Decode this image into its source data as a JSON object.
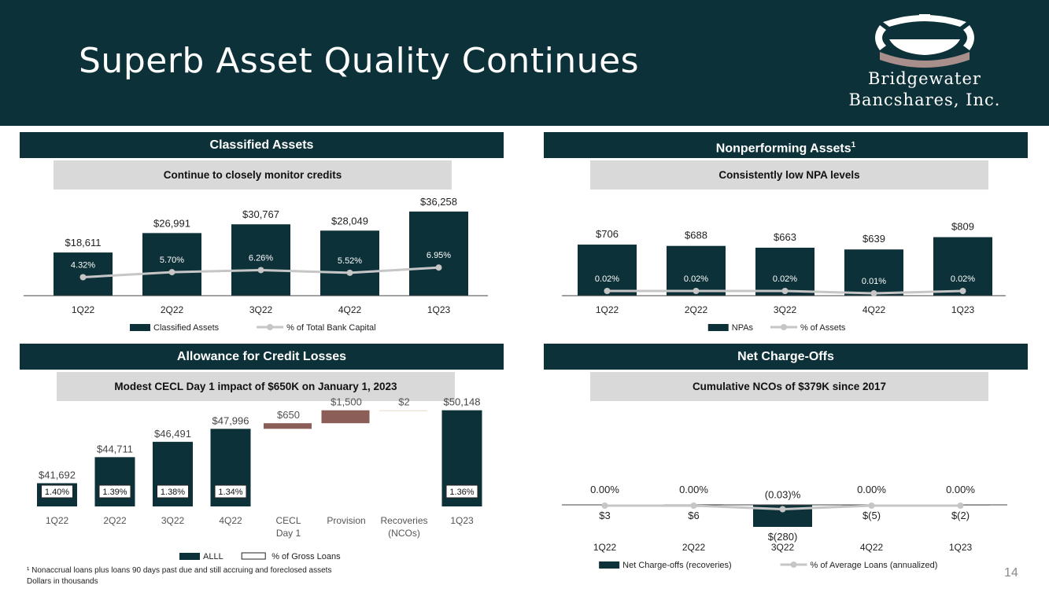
{
  "title": "Superb Asset Quality Continues",
  "logo": {
    "line1": "Bridgewater",
    "line2": "Bancshares, Inc."
  },
  "colors": {
    "navy": "#0d3138",
    "brown": "#8b5e58",
    "gray_line": "#c6c6c6",
    "band_gray": "#d9d9d9"
  },
  "panels": {
    "classified": {
      "band": "Classified Assets",
      "sub": "Continue to closely monitor credits"
    },
    "npa": {
      "band": "Nonperforming Assets",
      "band_sup": "1",
      "sub": "Consistently low NPA levels"
    },
    "allowance": {
      "band": "Allowance for Credit Losses",
      "sub": "Modest CECL Day 1 impact of $650K on January 1, 2023"
    },
    "nco": {
      "band": "Net Charge-Offs",
      "sub": "Cumulative NCOs of $379K since 2017"
    }
  },
  "chart_data": [
    {
      "id": "classified",
      "type": "bar",
      "categories": [
        "1Q22",
        "2Q22",
        "3Q22",
        "4Q22",
        "1Q23"
      ],
      "series": [
        {
          "name": "Classified Assets",
          "kind": "bar",
          "values": [
            18611,
            26991,
            30767,
            28049,
            36258
          ],
          "labels": [
            "$18,611",
            "$26,991",
            "$30,767",
            "$28,049",
            "$36,258"
          ]
        },
        {
          "name": "% of Total Bank Capital",
          "kind": "line",
          "values": [
            4.32,
            5.7,
            6.26,
            5.52,
            6.95
          ],
          "labels": [
            "4.32%",
            "5.70%",
            "6.26%",
            "5.52%",
            "6.95%"
          ]
        }
      ],
      "legend": [
        "Classified Assets",
        "% of Total Bank Capital"
      ]
    },
    {
      "id": "npa",
      "type": "bar",
      "categories": [
        "1Q22",
        "2Q22",
        "3Q22",
        "4Q22",
        "1Q23"
      ],
      "series": [
        {
          "name": "NPAs",
          "kind": "bar",
          "values": [
            706,
            688,
            663,
            639,
            809
          ],
          "labels": [
            "$706",
            "$688",
            "$663",
            "$639",
            "$809"
          ]
        },
        {
          "name": "% of Assets",
          "kind": "line",
          "values": [
            0.02,
            0.02,
            0.02,
            0.01,
            0.02
          ],
          "labels": [
            "0.02%",
            "0.02%",
            "0.02%",
            "0.01%",
            "0.02%"
          ]
        }
      ],
      "legend": [
        "NPAs",
        "% of Assets"
      ]
    },
    {
      "id": "allowance",
      "type": "bar",
      "categories": [
        "1Q22",
        "2Q22",
        "3Q22",
        "4Q22",
        "CECL\nDay 1",
        "Provision",
        "Recoveries\n(NCOs)",
        "1Q23"
      ],
      "series": [
        {
          "name": "ALLL",
          "kind": "waterfall",
          "values": [
            41692,
            44711,
            46491,
            47996,
            650,
            1500,
            2,
            50148
          ],
          "labels": [
            "$41,692",
            "$44,711",
            "$46,491",
            "$47,996",
            "$650",
            "$1,500",
            "$2",
            "$50,148"
          ]
        },
        {
          "name": "% of Gross Loans",
          "kind": "boxlabel",
          "values": [
            1.4,
            1.39,
            1.38,
            1.34,
            null,
            null,
            null,
            1.36
          ],
          "labels": [
            "1.40%",
            "1.39%",
            "1.38%",
            "1.34%",
            "",
            "",
            "",
            "1.36%"
          ]
        }
      ],
      "legend": [
        "ALLL",
        "% of Gross Loans"
      ]
    },
    {
      "id": "nco",
      "type": "bar",
      "categories": [
        "1Q22",
        "2Q22",
        "3Q22",
        "4Q22",
        "1Q23"
      ],
      "series": [
        {
          "name": "Net Charge-offs (recoveries)",
          "kind": "bar",
          "values": [
            3,
            6,
            -280,
            -5,
            -2
          ],
          "labels": [
            "$3",
            "$6",
            "$(280)",
            "$(5)",
            "$(2)"
          ]
        },
        {
          "name": "% of Average Loans (annualized)",
          "kind": "line",
          "values": [
            0.0,
            0.0,
            -0.03,
            0.0,
            0.0
          ],
          "labels": [
            "0.00%",
            "0.00%",
            "(0.03)%",
            "0.00%",
            "0.00%"
          ]
        }
      ],
      "legend": [
        "Net Charge-offs (recoveries)",
        "% of Average Loans (annualized)"
      ]
    }
  ],
  "footnotes": [
    "¹ Nonaccrual loans plus loans 90 days past due and still accruing and foreclosed assets",
    "Dollars in thousands"
  ],
  "page_number": "14"
}
